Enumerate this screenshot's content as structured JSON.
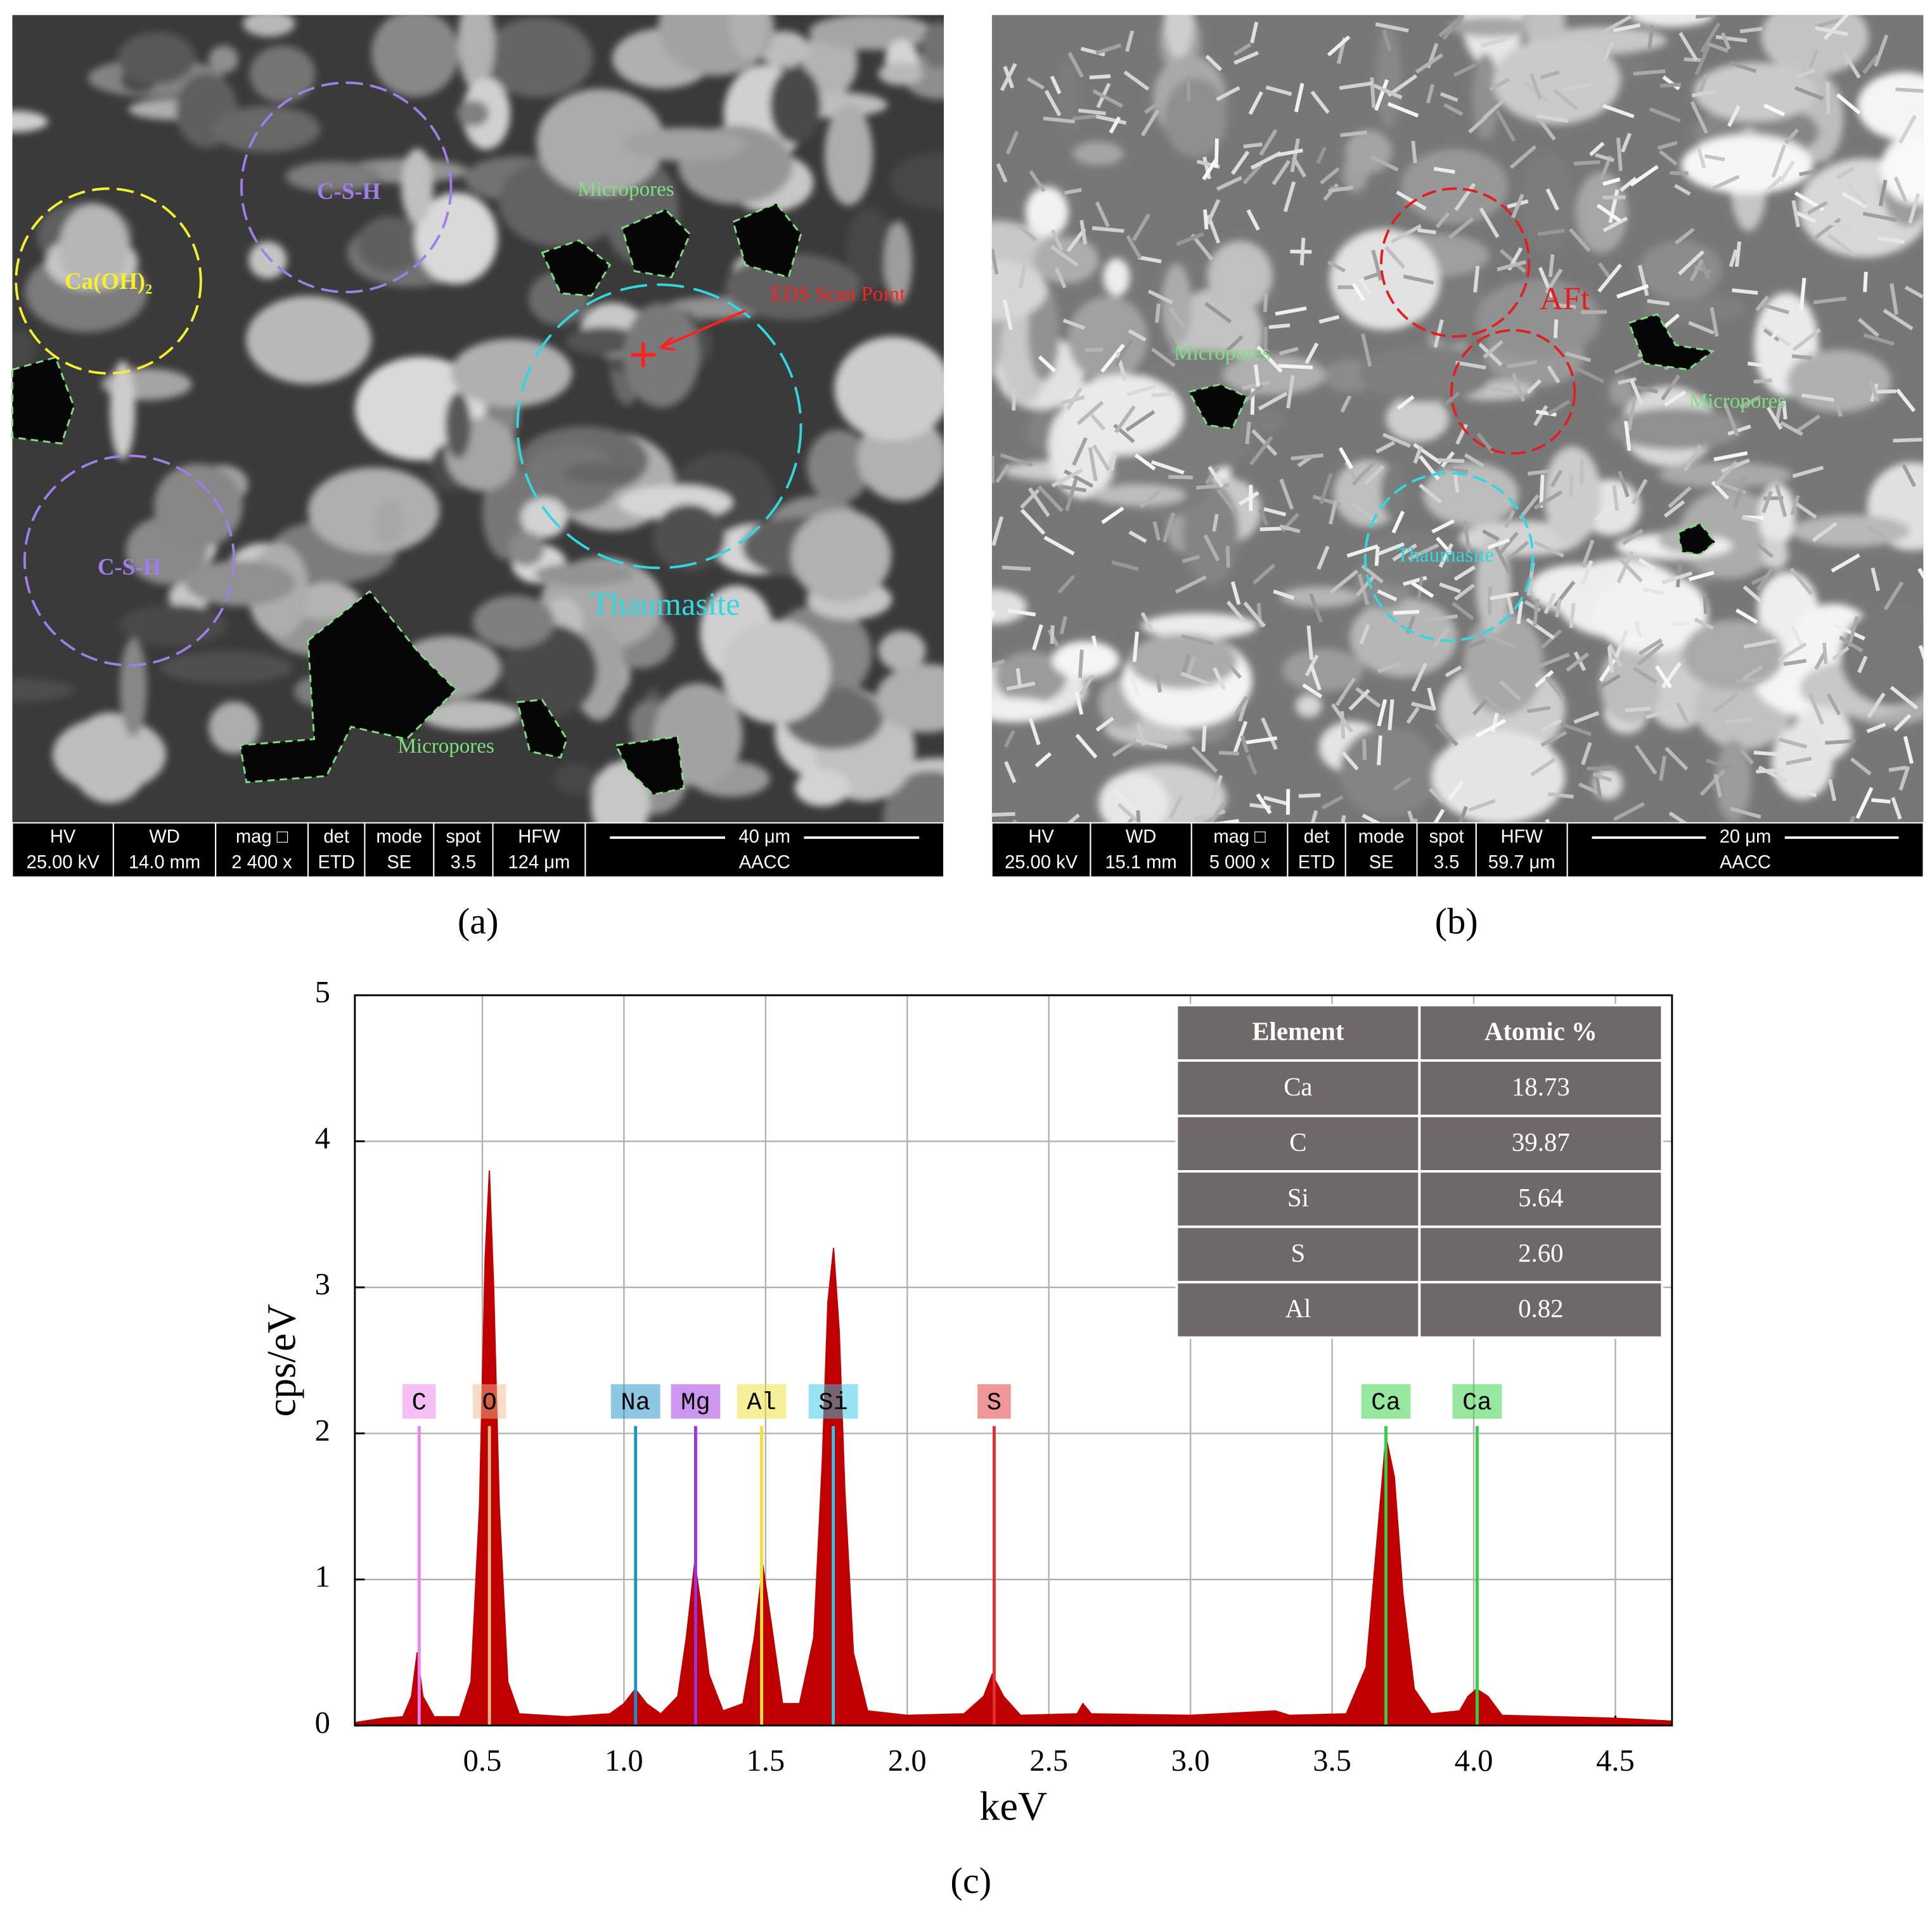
{
  "panel_a": {
    "caption": "(a)",
    "info_bar": [
      {
        "label": "HV",
        "value": "25.00 kV"
      },
      {
        "label": "WD",
        "value": "14.0 mm"
      },
      {
        "label": "mag □",
        "value": "2 400 x"
      },
      {
        "label": "det",
        "value": "ETD"
      },
      {
        "label": "mode",
        "value": "SE"
      },
      {
        "label": "spot",
        "value": "3.5"
      },
      {
        "label": "HFW",
        "value": "124 μm"
      }
    ],
    "scale_bar": "40 μm",
    "sample": "AACC",
    "labels": [
      "Ca(OH)₂",
      "C-S-H",
      "C-S-H",
      "Micropores",
      "EDS Scan Point",
      "Thaumasite",
      "Micropores"
    ]
  },
  "panel_b": {
    "caption": "(b)",
    "info_bar": [
      {
        "label": "HV",
        "value": "25.00 kV"
      },
      {
        "label": "WD",
        "value": "15.1 mm"
      },
      {
        "label": "mag □",
        "value": "5 000 x"
      },
      {
        "label": "det",
        "value": "ETD"
      },
      {
        "label": "mode",
        "value": "SE"
      },
      {
        "label": "spot",
        "value": "3.5"
      },
      {
        "label": "HFW",
        "value": "59.7 μm"
      }
    ],
    "scale_bar": "20 μm",
    "sample": "AACC",
    "labels": [
      "AFt",
      "Micropores",
      "Micropores",
      "Thaumasite"
    ]
  },
  "chart_data": {
    "type": "area",
    "caption": "(c)",
    "x_label": "keV",
    "y_label": "cps/eV",
    "xlim": [
      0.05,
      4.7
    ],
    "ylim": [
      0,
      5
    ],
    "xticks": [
      0.5,
      {
        "value": 1,
        "label": "1.0"
      },
      1.5,
      {
        "value": 2,
        "label": "2.0"
      },
      2.5,
      {
        "value": 3,
        "label": "3.0"
      },
      3.5,
      {
        "value": 4,
        "label": "4.0"
      },
      4.5
    ],
    "yticks": [
      0,
      1,
      2,
      3,
      4,
      5
    ],
    "grid": true,
    "series": [
      {
        "name": "EDS spectrum",
        "color": "#c00000",
        "x": [
          0.05,
          0.15,
          0.22,
          0.25,
          0.27,
          0.29,
          0.33,
          0.42,
          0.46,
          0.49,
          0.51,
          0.525,
          0.54,
          0.56,
          0.59,
          0.63,
          0.8,
          0.95,
          1.0,
          1.04,
          1.08,
          1.13,
          1.19,
          1.22,
          1.25,
          1.27,
          1.3,
          1.35,
          1.42,
          1.46,
          1.49,
          1.52,
          1.56,
          1.62,
          1.67,
          1.7,
          1.72,
          1.74,
          1.76,
          1.78,
          1.81,
          1.86,
          2.0,
          2.2,
          2.27,
          2.3,
          2.34,
          2.4,
          2.6,
          2.62,
          2.65,
          3.0,
          3.3,
          3.35,
          3.55,
          3.62,
          3.66,
          3.69,
          3.72,
          3.75,
          3.79,
          3.85,
          3.95,
          3.98,
          4.01,
          4.05,
          4.1,
          4.5,
          4.7
        ],
        "values": [
          0.02,
          0.05,
          0.06,
          0.2,
          0.5,
          0.2,
          0.06,
          0.06,
          0.3,
          1.5,
          3.2,
          3.8,
          3.0,
          1.5,
          0.3,
          0.08,
          0.06,
          0.08,
          0.15,
          0.25,
          0.15,
          0.08,
          0.2,
          0.6,
          1.12,
          0.85,
          0.35,
          0.1,
          0.15,
          0.6,
          1.1,
          0.7,
          0.15,
          0.15,
          0.6,
          1.8,
          2.9,
          3.27,
          2.7,
          1.6,
          0.5,
          0.1,
          0.07,
          0.08,
          0.2,
          0.35,
          0.2,
          0.07,
          0.08,
          0.15,
          0.08,
          0.07,
          0.1,
          0.07,
          0.08,
          0.4,
          1.3,
          1.98,
          1.7,
          0.9,
          0.25,
          0.08,
          0.1,
          0.2,
          0.25,
          0.2,
          0.07,
          0.05,
          0.03
        ]
      }
    ],
    "marker_top": 2.05,
    "element_markers": [
      {
        "label": "C",
        "x": 0.277,
        "color": "#ee82ee"
      },
      {
        "label": "O",
        "x": 0.525,
        "color": "#f4b990"
      },
      {
        "label": "Na",
        "x": 1.041,
        "color": "#1e90c8"
      },
      {
        "label": "Mg",
        "x": 1.253,
        "color": "#9b30e0"
      },
      {
        "label": "Al",
        "x": 1.486,
        "color": "#f0e030"
      },
      {
        "label": "Si",
        "x": 1.739,
        "color": "#30c8e8"
      },
      {
        "label": "S",
        "x": 2.307,
        "color": "#e03030"
      },
      {
        "label": "Ca",
        "x": 3.69,
        "color": "#30d040"
      },
      {
        "label": "Ca",
        "x": 4.012,
        "color": "#30d040"
      }
    ],
    "table": {
      "columns": [
        "Element",
        "Atomic %"
      ],
      "rows": [
        [
          "Ca",
          "18.73"
        ],
        [
          "C",
          "39.87"
        ],
        [
          "Si",
          "5.64"
        ],
        [
          "S",
          "2.60"
        ],
        [
          "Al",
          "0.82"
        ]
      ]
    }
  }
}
